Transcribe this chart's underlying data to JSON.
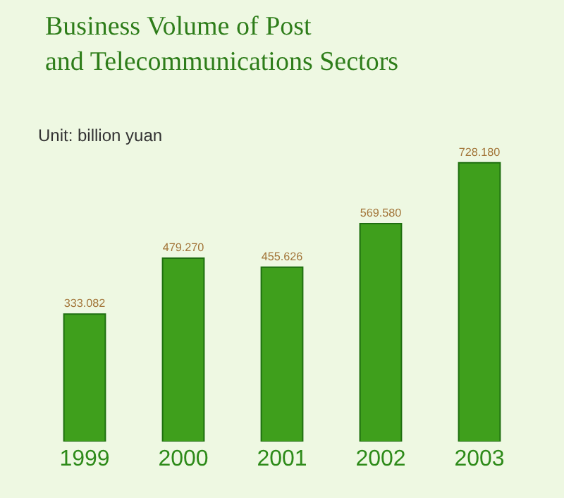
{
  "chart_data": {
    "type": "bar",
    "title": "Business Volume of Post\nand Telecommunications Sectors",
    "annotations": [
      "Unit: billion yuan"
    ],
    "categories": [
      "1999",
      "2000",
      "2001",
      "2002",
      "2003"
    ],
    "values": [
      333.082,
      479.27,
      455.626,
      569.58,
      728.18
    ],
    "value_labels": [
      "333.082",
      "479.270",
      "455.626",
      "569.580",
      "728.180"
    ],
    "color": "#3f9f1c",
    "grid": false,
    "legend": false
  }
}
